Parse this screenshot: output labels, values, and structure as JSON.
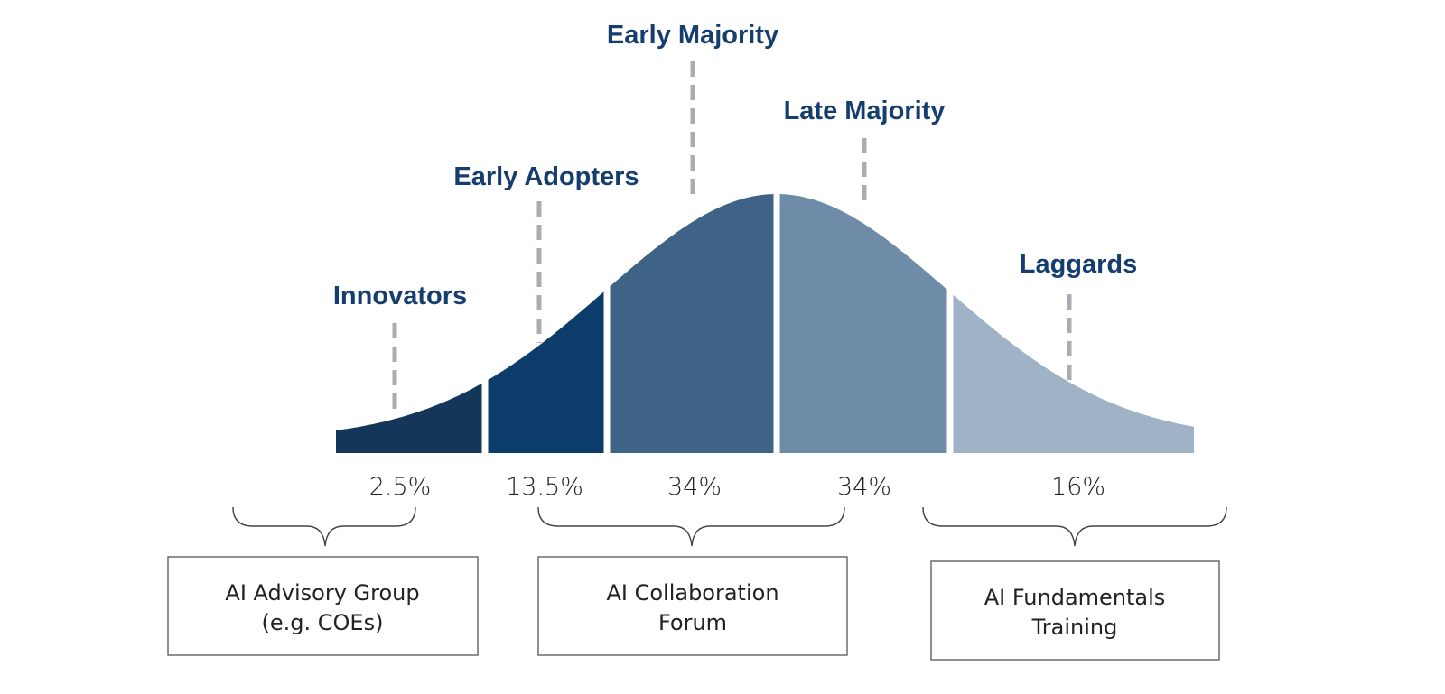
{
  "segments": [
    {
      "category": "Innovators",
      "percent": "2.5%",
      "color": "#133659"
    },
    {
      "category": "Early Adopters",
      "percent": "13.5%",
      "color": "#0b3c6a"
    },
    {
      "category": "Early Majority",
      "percent": "34%",
      "color": "#3e6387"
    },
    {
      "category": "Late Majority",
      "percent": "34%",
      "color": "#6e8ca8"
    },
    {
      "category": "Laggards",
      "percent": "16%",
      "color": "#9fb2c6"
    }
  ],
  "groups": [
    {
      "line1": "AI Advisory Group",
      "line2": "(e.g. COEs)"
    },
    {
      "line1": "AI Collaboration",
      "line2": "Forum"
    },
    {
      "line1": "AI Fundamentals",
      "line2": "Training"
    }
  ]
}
